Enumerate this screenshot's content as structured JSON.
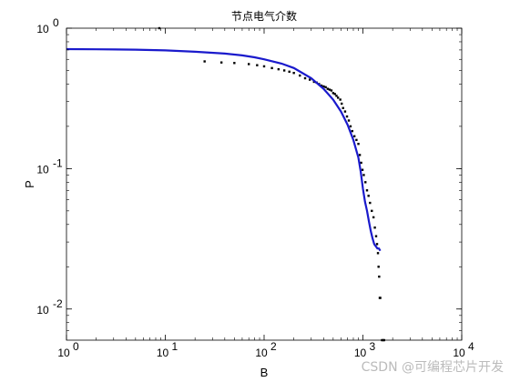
{
  "chart_data": {
    "type": "scatter",
    "title": "节点电气介数",
    "xlabel": "B",
    "ylabel": "P",
    "xscale": "log",
    "yscale": "log",
    "xlim": [
      1,
      10000
    ],
    "ylim": [
      0.006,
      1
    ],
    "grid": false,
    "x_ticks": [
      {
        "value": 1,
        "label": "10",
        "exp": "0"
      },
      {
        "value": 10,
        "label": "10",
        "exp": "1"
      },
      {
        "value": 100,
        "label": "10",
        "exp": "2"
      },
      {
        "value": 1000,
        "label": "10",
        "exp": "3"
      },
      {
        "value": 10000,
        "label": "10",
        "exp": "4"
      }
    ],
    "y_ticks": [
      {
        "value": 0.01,
        "label": "10",
        "exp": "-2"
      },
      {
        "value": 0.1,
        "label": "10",
        "exp": "-1"
      },
      {
        "value": 1,
        "label": "10",
        "exp": "0"
      }
    ],
    "series": [
      {
        "kind": "scatter",
        "color": "#000000",
        "points": [
          [
            8.7,
            1.0
          ],
          [
            25,
            0.58
          ],
          [
            37,
            0.57
          ],
          [
            50,
            0.565
          ],
          [
            70,
            0.555
          ],
          [
            85,
            0.545
          ],
          [
            100,
            0.535
          ],
          [
            120,
            0.52
          ],
          [
            140,
            0.51
          ],
          [
            160,
            0.5
          ],
          [
            180,
            0.49
          ],
          [
            200,
            0.48
          ],
          [
            230,
            0.46
          ],
          [
            260,
            0.44
          ],
          [
            290,
            0.43
          ],
          [
            320,
            0.415
          ],
          [
            340,
            0.41
          ],
          [
            360,
            0.4
          ],
          [
            380,
            0.39
          ],
          [
            400,
            0.385
          ],
          [
            420,
            0.38
          ],
          [
            440,
            0.37
          ],
          [
            460,
            0.365
          ],
          [
            480,
            0.36
          ],
          [
            500,
            0.345
          ],
          [
            520,
            0.34
          ],
          [
            540,
            0.33
          ],
          [
            560,
            0.32
          ],
          [
            590,
            0.31
          ],
          [
            610,
            0.29
          ],
          [
            630,
            0.27
          ],
          [
            660,
            0.255
          ],
          [
            690,
            0.235
          ],
          [
            720,
            0.22
          ],
          [
            750,
            0.2
          ],
          [
            780,
            0.185
          ],
          [
            820,
            0.17
          ],
          [
            860,
            0.16
          ],
          [
            900,
            0.15
          ],
          [
            930,
            0.125
          ],
          [
            960,
            0.11
          ],
          [
            990,
            0.098
          ],
          [
            1020,
            0.09
          ],
          [
            1060,
            0.08
          ],
          [
            1100,
            0.07
          ],
          [
            1140,
            0.064
          ],
          [
            1180,
            0.057
          ],
          [
            1230,
            0.05
          ],
          [
            1280,
            0.045
          ],
          [
            1320,
            0.038
          ],
          [
            1360,
            0.033
          ],
          [
            1390,
            0.029
          ],
          [
            1420,
            0.025
          ],
          [
            1440,
            0.02
          ],
          [
            1460,
            0.017
          ],
          [
            1480,
            0.012
          ],
          [
            1500,
            0.012
          ],
          [
            1560,
            0.006
          ],
          [
            1600,
            0.006
          ],
          [
            1640,
            0.006
          ]
        ]
      },
      {
        "kind": "line",
        "color": "#1a1acc",
        "points": [
          [
            1,
            0.71
          ],
          [
            2,
            0.708
          ],
          [
            5,
            0.703
          ],
          [
            10,
            0.695
          ],
          [
            20,
            0.68
          ],
          [
            40,
            0.66
          ],
          [
            60,
            0.64
          ],
          [
            80,
            0.62
          ],
          [
            100,
            0.6
          ],
          [
            150,
            0.56
          ],
          [
            200,
            0.52
          ],
          [
            300,
            0.44
          ],
          [
            400,
            0.37
          ],
          [
            500,
            0.31
          ],
          [
            600,
            0.255
          ],
          [
            700,
            0.205
          ],
          [
            800,
            0.16
          ],
          [
            900,
            0.12
          ],
          [
            950,
            0.095
          ],
          [
            1000,
            0.072
          ],
          [
            1050,
            0.058
          ],
          [
            1100,
            0.05
          ],
          [
            1150,
            0.042
          ],
          [
            1200,
            0.036
          ],
          [
            1250,
            0.032
          ],
          [
            1300,
            0.029
          ],
          [
            1350,
            0.028
          ],
          [
            1400,
            0.027
          ],
          [
            1450,
            0.027
          ],
          [
            1500,
            0.026
          ]
        ]
      }
    ]
  },
  "watermark": "CSDN @可编程芯片开发"
}
